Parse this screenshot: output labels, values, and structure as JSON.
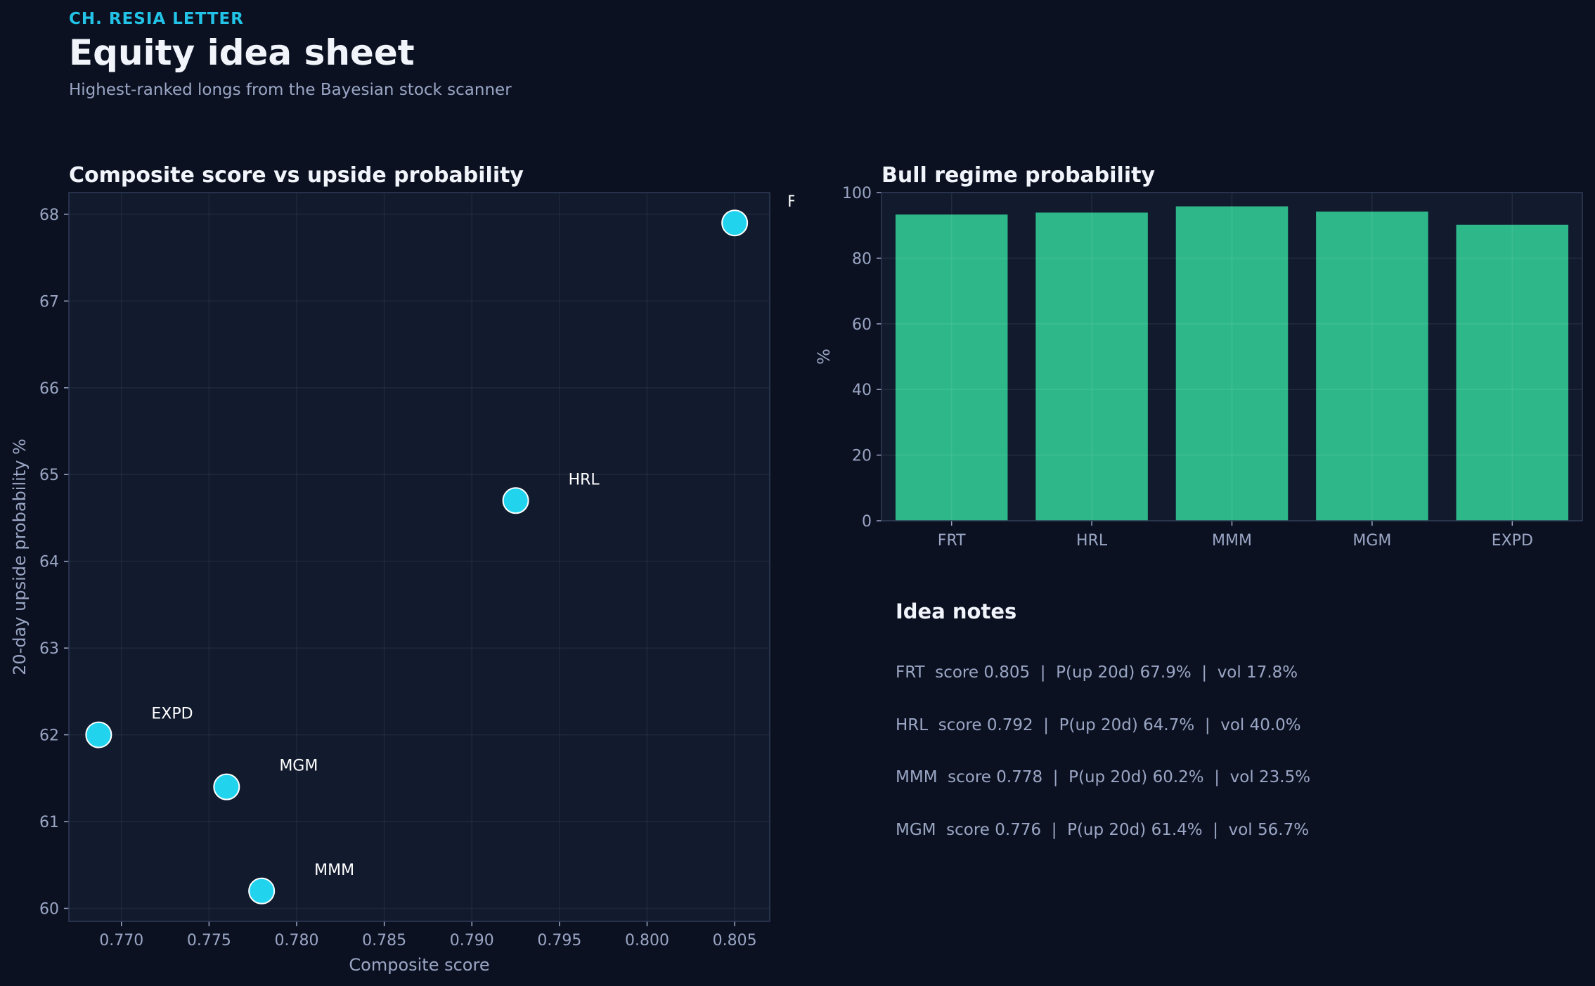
{
  "header": {
    "kicker": "CH. RESIA LETTER",
    "title": "Equity idea sheet",
    "subtitle": "Highest-ranked longs from the Bayesian stock scanner"
  },
  "colors": {
    "background": "#0b1121",
    "panel": "#121a2e",
    "scatter_point": "#22d3ee",
    "bar": "#2eb88a",
    "tick_text": "#9aa6c4"
  },
  "chart_data": [
    {
      "type": "scatter",
      "title": "Composite score vs upside probability",
      "xlabel": "Composite score",
      "ylabel": "20-day upside probability %",
      "xlim": [
        0.767,
        0.807
      ],
      "ylim": [
        59.85,
        68.25
      ],
      "xticks": [
        "0.770",
        "0.775",
        "0.780",
        "0.785",
        "0.790",
        "0.795",
        "0.800",
        "0.805"
      ],
      "yticks": [
        "60",
        "61",
        "62",
        "63",
        "64",
        "65",
        "66",
        "67",
        "68"
      ],
      "grid": true,
      "points": [
        {
          "label": "FRT",
          "x": 0.805,
          "y": 67.9
        },
        {
          "label": "HRL",
          "x": 0.7925,
          "y": 64.7
        },
        {
          "label": "EXPD",
          "x": 0.7687,
          "y": 62.0
        },
        {
          "label": "MGM",
          "x": 0.776,
          "y": 61.4
        },
        {
          "label": "MMM",
          "x": 0.778,
          "y": 60.2
        }
      ]
    },
    {
      "type": "bar",
      "title": "Bull regime probability",
      "ylabel": "%",
      "ylim": [
        0,
        100
      ],
      "yticks": [
        "0",
        "20",
        "40",
        "60",
        "80",
        "100"
      ],
      "grid": true,
      "categories": [
        "FRT",
        "HRL",
        "MMM",
        "MGM",
        "EXPD"
      ],
      "values": [
        93.3,
        93.9,
        95.8,
        94.2,
        90.2
      ]
    }
  ],
  "notes": {
    "title": "Idea notes",
    "lines": [
      "FRT  score 0.805  |  P(up 20d) 67.9%  |  vol 17.8%",
      "HRL  score 0.792  |  P(up 20d) 64.7%  |  vol 40.0%",
      "MMM  score 0.778  |  P(up 20d) 60.2%  |  vol 23.5%",
      "MGM  score 0.776  |  P(up 20d) 61.4%  |  vol 56.7%"
    ]
  }
}
